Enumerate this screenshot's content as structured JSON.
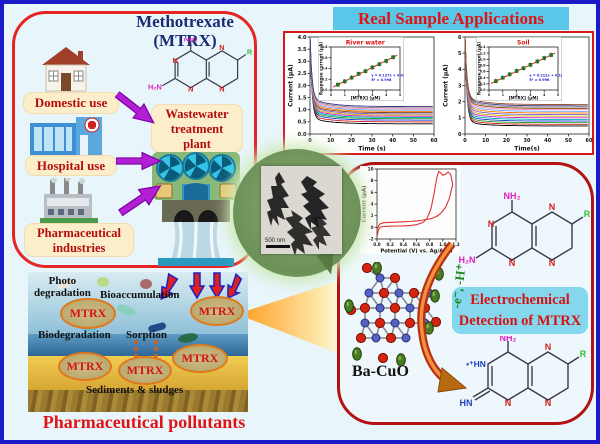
{
  "colors": {
    "outer_border": "#1a1ac8",
    "panel_red": "#e62424",
    "accent_red_text": "#d41414",
    "cream": "#fdeecb",
    "title_navy": "#1b2a74",
    "rsa_bg": "#59c7e8",
    "purple_arrow": "#b31fd4",
    "detect_bg": "#84d7ec",
    "green_label": "#1f8a1f",
    "ba_red": "#d42310",
    "cu_blue": "#5661c4",
    "ellipse_green": "#4a7a22"
  },
  "panel_mtrx": {
    "title_line1": "Methotrexate",
    "title_line2": "(MTRX)",
    "domestic": "Domestic use",
    "hospital": "Hospital use",
    "pharma_line1": "Pharmaceutical",
    "pharma_line2": "industries",
    "wwtp_line1": "Wastewater",
    "wwtp_line2": "treatment",
    "wwtp_line3": "plant"
  },
  "atoms": {
    "nh2": "NH₂",
    "h2n": "H₂N",
    "n": "N",
    "r": "R",
    "hn_plus": "•⁺HN",
    "hn": "HN"
  },
  "real_samples": {
    "title": "Real Sample Applications"
  },
  "center": {
    "scale_bar": "500 nm"
  },
  "detection": {
    "label_line1": "Electrochemical",
    "label_line2": "Detection of MTRX",
    "electron_label": "-e⁻, -H⁺",
    "catalyst": "Ba-CuO"
  },
  "pollutants": {
    "photo_line1": "Photo",
    "photo_line2": "degradation",
    "bioacc": "Bioaccumulation",
    "biodeg": "Biodegradation",
    "sorption": "Sorption",
    "sediments": "Sediments & sludges",
    "mtrx": "MTRX",
    "caption": "Pharmaceutical pollutants"
  },
  "chart_data": [
    {
      "id": "river_it",
      "type": "line",
      "title": "",
      "xlabel": "Time (s)",
      "ylabel": "Current (µA)",
      "xlim": [
        0,
        60
      ],
      "ylim": [
        0,
        4.0
      ],
      "xticks": [
        0,
        10,
        20,
        30,
        40,
        50,
        60
      ],
      "yticks": [
        0.0,
        0.5,
        1.0,
        1.5,
        2.0,
        2.5,
        3.0,
        3.5,
        4.0
      ],
      "ydec": 1,
      "note": "amperometric i-t curves, successive MTRX additions",
      "spike": 3.75,
      "series": [
        {
          "plateau": 0.42,
          "color": "#000000"
        },
        {
          "plateau": 0.5,
          "color": "#d42020"
        },
        {
          "plateau": 0.57,
          "color": "#2244d8"
        },
        {
          "plateau": 0.63,
          "color": "#22a022"
        },
        {
          "plateau": 0.68,
          "color": "#00b4b4"
        },
        {
          "plateau": 0.73,
          "color": "#d422d4"
        },
        {
          "plateau": 0.78,
          "color": "#c8b400"
        },
        {
          "plateau": 0.83,
          "color": "#8a5ad0"
        },
        {
          "plateau": 0.88,
          "color": "#8a4a12"
        },
        {
          "plateau": 0.93,
          "color": "#ff8000"
        },
        {
          "plateau": 0.98,
          "color": "#6aa8ff"
        },
        {
          "plateau": 1.03,
          "color": "#ff8ac0"
        },
        {
          "plateau": 1.08,
          "color": "#8a8a8a"
        },
        {
          "plateau": 1.13,
          "color": "#3a3a8a"
        }
      ]
    },
    {
      "id": "river_inset",
      "type": "scatter",
      "title": "River water",
      "xlabel": "[MTRX] (µM)",
      "ylabel": "Response current (µA)",
      "xlim": [
        0,
        5
      ],
      "ylim": [
        0.0,
        0.8
      ],
      "xticks": [
        0,
        1,
        2,
        3,
        4,
        5
      ],
      "yticks": [
        0.0,
        0.2,
        0.4,
        0.6,
        0.8
      ],
      "ydec": 1,
      "equation": "y = 0.127x + 0.036",
      "r2": "R² = 0.998",
      "x": [
        0.5,
        1.0,
        1.5,
        2.0,
        2.5,
        3.0,
        3.5,
        4.0,
        4.5
      ],
      "y": [
        0.1,
        0.16,
        0.23,
        0.3,
        0.35,
        0.42,
        0.48,
        0.54,
        0.61
      ],
      "fit_color": "#e02020",
      "point_color": "#2a8a2a"
    },
    {
      "id": "soil_it",
      "type": "line",
      "title": "",
      "xlabel": "Time(s)",
      "ylabel": "Current (µA)",
      "xlim": [
        0,
        60
      ],
      "ylim": [
        0,
        6
      ],
      "xticks": [
        0,
        10,
        20,
        30,
        40,
        50,
        60
      ],
      "yticks": [
        0,
        1,
        2,
        3,
        4,
        5,
        6
      ],
      "ydec": 0,
      "note": "amperometric i-t curves, successive MTRX additions",
      "spike": 5.7,
      "series": [
        {
          "plateau": 0.5,
          "color": "#000000"
        },
        {
          "plateau": 0.6,
          "color": "#d42020"
        },
        {
          "plateau": 0.7,
          "color": "#22a022"
        },
        {
          "plateau": 0.8,
          "color": "#2244d8"
        },
        {
          "plateau": 0.9,
          "color": "#00b4b4"
        },
        {
          "plateau": 1.0,
          "color": "#d422d4"
        },
        {
          "plateau": 1.1,
          "color": "#c8b400"
        },
        {
          "plateau": 1.2,
          "color": "#8a5ad0"
        },
        {
          "plateau": 1.3,
          "color": "#ff8000"
        },
        {
          "plateau": 1.4,
          "color": "#6aa8ff"
        },
        {
          "plateau": 1.5,
          "color": "#ff8ac0"
        },
        {
          "plateau": 1.58,
          "color": "#8a4a12"
        },
        {
          "plateau": 1.66,
          "color": "#8a8a8a"
        },
        {
          "plateau": 1.74,
          "color": "#3a3a8a"
        },
        {
          "plateau": 1.82,
          "color": "#a0522d"
        }
      ]
    },
    {
      "id": "soil_inset",
      "type": "scatter",
      "title": "Soil",
      "xlabel": "[MTRX] (µM)",
      "ylabel": "Response current (µA)",
      "xlim": [
        0,
        5
      ],
      "ylim": [
        0.0,
        1.4
      ],
      "xticks": [
        0,
        1,
        2,
        3,
        4,
        5
      ],
      "yticks": [
        0.0,
        0.2,
        0.4,
        0.6,
        0.8,
        1.0,
        1.2,
        1.4
      ],
      "ydec": 1,
      "equation": "y = 0.212x + 0.188",
      "r2": "R² = 0.996",
      "x": [
        0.5,
        1.0,
        1.5,
        2.0,
        2.5,
        3.0,
        3.5,
        4.0,
        4.5
      ],
      "y": [
        0.29,
        0.4,
        0.51,
        0.62,
        0.71,
        0.82,
        0.93,
        1.04,
        1.14
      ],
      "fit_color": "#e02020",
      "point_color": "#2a8a2a"
    },
    {
      "id": "cv",
      "type": "line",
      "title": "",
      "xlabel": "Potential (V) vs. Ag/AgCl",
      "ylabel": "Current (µA)",
      "xlim": [
        0,
        1.2
      ],
      "ylim": [
        -2,
        10
      ],
      "xticks": [
        0.0,
        0.2,
        0.4,
        0.6,
        0.8,
        1.0,
        1.2
      ],
      "yticks": [
        -2,
        0,
        2,
        4,
        6,
        8,
        10
      ],
      "color": "#e03030",
      "forward": [
        [
          0,
          -1.6
        ],
        [
          0.02,
          -0.5
        ],
        [
          0.05,
          0.05
        ],
        [
          0.1,
          0.15
        ],
        [
          0.2,
          0.2
        ],
        [
          0.3,
          0.22
        ],
        [
          0.4,
          0.25
        ],
        [
          0.5,
          0.3
        ],
        [
          0.6,
          0.45
        ],
        [
          0.7,
          0.85
        ],
        [
          0.76,
          1.5
        ],
        [
          0.82,
          3.2
        ],
        [
          0.87,
          6.0
        ],
        [
          0.91,
          8.6
        ],
        [
          0.94,
          9.6
        ],
        [
          0.97,
          9.3
        ],
        [
          1.0,
          8.9
        ],
        [
          1.04,
          9.1
        ],
        [
          1.08,
          9.5
        ],
        [
          1.12,
          9.0
        ],
        [
          1.15,
          7.4
        ]
      ],
      "reverse": [
        [
          1.15,
          7.4
        ],
        [
          1.1,
          5.0
        ],
        [
          1.05,
          3.6
        ],
        [
          1.0,
          2.8
        ],
        [
          0.95,
          2.2
        ],
        [
          0.9,
          1.85
        ],
        [
          0.85,
          1.6
        ],
        [
          0.8,
          1.45
        ],
        [
          0.7,
          1.25
        ],
        [
          0.6,
          1.1
        ],
        [
          0.5,
          1.0
        ],
        [
          0.4,
          0.95
        ],
        [
          0.3,
          0.9
        ],
        [
          0.2,
          0.85
        ],
        [
          0.1,
          0.8
        ],
        [
          0.04,
          0.55
        ],
        [
          0.0,
          -0.4
        ]
      ]
    }
  ]
}
